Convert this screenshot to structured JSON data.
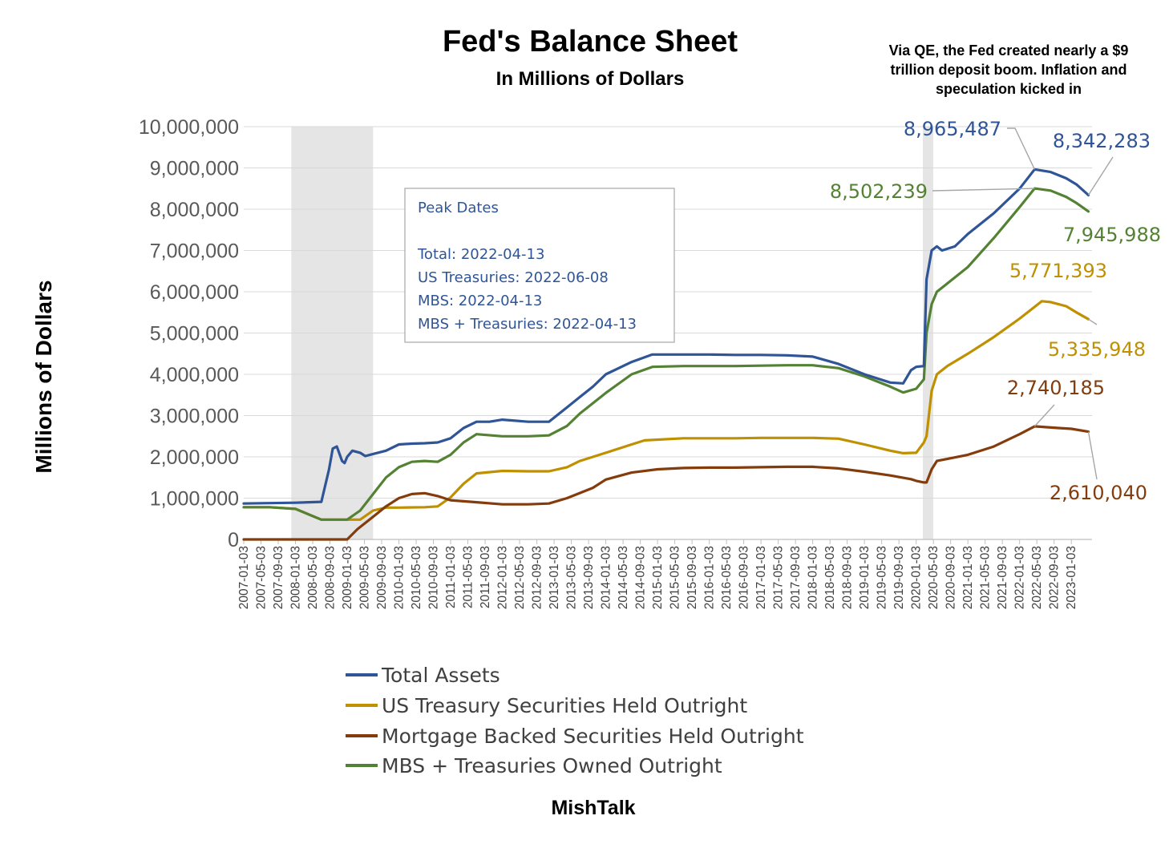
{
  "chart_data": {
    "type": "line",
    "title": "Fed's Balance Sheet",
    "subtitle": "In Millions of Dollars",
    "annotation_lines": [
      "Via QE, the Fed created nearly a $9",
      "trillion deposit boom. Inflation and",
      "speculation kicked in"
    ],
    "ylabel": "Millions of Dollars",
    "ylim": [
      0,
      10000000
    ],
    "yticks": [
      0,
      1000000,
      2000000,
      3000000,
      4000000,
      5000000,
      6000000,
      7000000,
      8000000,
      9000000,
      10000000
    ],
    "ytick_labels": [
      "0",
      "1,000,000",
      "2,000,000",
      "3,000,000",
      "4,000,000",
      "5,000,000",
      "6,000,000",
      "7,000,000",
      "8,000,000",
      "9,000,000",
      "10,000,000"
    ],
    "xlim": [
      2007.0,
      2023.4
    ],
    "xtick_labels": [
      "2007-01-03",
      "2007-05-03",
      "2007-09-03",
      "2008-01-03",
      "2008-05-03",
      "2008-09-03",
      "2009-01-03",
      "2009-05-03",
      "2009-09-03",
      "2010-01-03",
      "2010-05-03",
      "2010-09-03",
      "2011-01-03",
      "2011-05-03",
      "2011-09-03",
      "2012-01-03",
      "2012-05-03",
      "2012-09-03",
      "2013-01-03",
      "2013-05-03",
      "2013-09-03",
      "2014-01-03",
      "2014-05-03",
      "2014-09-03",
      "2015-01-03",
      "2015-05-03",
      "2015-09-03",
      "2016-01-03",
      "2016-05-03",
      "2016-09-03",
      "2017-01-03",
      "2017-05-03",
      "2017-09-03",
      "2018-01-03",
      "2018-05-03",
      "2018-09-03",
      "2019-01-03",
      "2019-05-03",
      "2019-09-03",
      "2020-01-03",
      "2020-05-03",
      "2020-09-03",
      "2021-01-03",
      "2021-05-03",
      "2021-09-03",
      "2022-01-03",
      "2022-05-03",
      "2022-09-03",
      "2023-01-03"
    ],
    "recession_bands": [
      [
        2007.92,
        2009.5
      ],
      [
        2020.13,
        2020.33
      ]
    ],
    "series": [
      {
        "name": "Total Assets",
        "color": "#2F5597",
        "x": [
          2007.0,
          2007.5,
          2008.0,
          2008.5,
          2008.65,
          2008.72,
          2008.8,
          2008.9,
          2008.95,
          2009.0,
          2009.1,
          2009.25,
          2009.35,
          2009.5,
          2009.75,
          2010.0,
          2010.25,
          2010.5,
          2010.75,
          2011.0,
          2011.25,
          2011.5,
          2011.75,
          2012.0,
          2012.5,
          2012.9,
          2013.25,
          2013.5,
          2013.75,
          2014.0,
          2014.5,
          2014.9,
          2015.5,
          2016.0,
          2016.5,
          2017.0,
          2017.5,
          2018.0,
          2018.5,
          2019.0,
          2019.5,
          2019.75,
          2019.9,
          2020.0,
          2020.15,
          2020.2,
          2020.3,
          2020.4,
          2020.5,
          2020.75,
          2021.0,
          2021.5,
          2022.0,
          2022.29,
          2022.6,
          2022.9,
          2023.1,
          2023.33
        ],
        "values": [
          870000,
          880000,
          890000,
          910000,
          1700000,
          2200000,
          2250000,
          1900000,
          1850000,
          2000000,
          2150000,
          2100000,
          2020000,
          2070000,
          2150000,
          2300000,
          2320000,
          2330000,
          2350000,
          2450000,
          2700000,
          2850000,
          2850000,
          2900000,
          2850000,
          2850000,
          3200000,
          3450000,
          3700000,
          4000000,
          4300000,
          4480000,
          4480000,
          4480000,
          4470000,
          4470000,
          4460000,
          4430000,
          4250000,
          4000000,
          3800000,
          3780000,
          4100000,
          4180000,
          4200000,
          6300000,
          7000000,
          7100000,
          7000000,
          7100000,
          7400000,
          7900000,
          8500000,
          8965487,
          8900000,
          8750000,
          8600000,
          8342283
        ]
      },
      {
        "name": "US Treasury Securities Held Outright",
        "color": "#BF9000",
        "x": [
          2007.0,
          2007.5,
          2008.0,
          2008.5,
          2008.75,
          2009.0,
          2009.25,
          2009.5,
          2009.75,
          2010.0,
          2010.5,
          2010.75,
          2011.0,
          2011.25,
          2011.5,
          2012.0,
          2012.5,
          2012.9,
          2013.25,
          2013.5,
          2014.0,
          2014.5,
          2014.75,
          2015.5,
          2016.0,
          2016.5,
          2017.0,
          2017.5,
          2018.0,
          2018.5,
          2019.0,
          2019.5,
          2019.75,
          2020.0,
          2020.15,
          2020.2,
          2020.3,
          2020.4,
          2020.6,
          2021.0,
          2021.5,
          2022.0,
          2022.43,
          2022.6,
          2022.9,
          2023.1,
          2023.33
        ],
        "values": [
          780000,
          780000,
          740000,
          480000,
          480000,
          480000,
          480000,
          700000,
          770000,
          770000,
          780000,
          800000,
          1020000,
          1350000,
          1600000,
          1660000,
          1650000,
          1650000,
          1750000,
          1900000,
          2100000,
          2300000,
          2400000,
          2450000,
          2450000,
          2450000,
          2460000,
          2460000,
          2460000,
          2440000,
          2300000,
          2150000,
          2090000,
          2100000,
          2350000,
          2500000,
          3600000,
          4000000,
          4200000,
          4500000,
          4900000,
          5350000,
          5771393,
          5750000,
          5650000,
          5500000,
          5335948
        ]
      },
      {
        "name": "Mortgage Backed Securities Held Outright",
        "color": "#843C0C",
        "x": [
          2007.0,
          2008.0,
          2009.0,
          2009.2,
          2009.5,
          2009.75,
          2010.0,
          2010.25,
          2010.5,
          2010.75,
          2011.0,
          2011.5,
          2012.0,
          2012.5,
          2012.9,
          2013.25,
          2013.75,
          2014.0,
          2014.5,
          2015.0,
          2015.5,
          2016.0,
          2016.5,
          2017.0,
          2017.5,
          2018.0,
          2018.5,
          2019.0,
          2019.5,
          2019.9,
          2020.0,
          2020.15,
          2020.2,
          2020.3,
          2020.4,
          2020.6,
          2021.0,
          2021.5,
          2022.0,
          2022.29,
          2022.5,
          2022.75,
          2023.0,
          2023.33
        ],
        "values": [
          0,
          0,
          0,
          250000,
          550000,
          800000,
          1000000,
          1100000,
          1120000,
          1050000,
          950000,
          900000,
          850000,
          850000,
          870000,
          1000000,
          1250000,
          1450000,
          1620000,
          1700000,
          1730000,
          1740000,
          1740000,
          1750000,
          1760000,
          1760000,
          1720000,
          1640000,
          1550000,
          1460000,
          1420000,
          1380000,
          1380000,
          1700000,
          1900000,
          1950000,
          2050000,
          2250000,
          2550000,
          2740185,
          2720000,
          2700000,
          2680000,
          2610040
        ]
      },
      {
        "name": "MBS + Treasuries Owned Outright",
        "color": "#548235",
        "x": [
          2007.0,
          2007.5,
          2008.0,
          2008.5,
          2008.75,
          2009.0,
          2009.25,
          2009.5,
          2009.75,
          2010.0,
          2010.25,
          2010.5,
          2010.75,
          2011.0,
          2011.25,
          2011.5,
          2012.0,
          2012.5,
          2012.9,
          2013.25,
          2013.5,
          2014.0,
          2014.5,
          2014.9,
          2015.5,
          2016.0,
          2016.5,
          2017.0,
          2017.5,
          2018.0,
          2018.5,
          2019.0,
          2019.5,
          2019.75,
          2020.0,
          2020.15,
          2020.2,
          2020.3,
          2020.4,
          2020.6,
          2021.0,
          2021.5,
          2022.0,
          2022.29,
          2022.6,
          2022.9,
          2023.1,
          2023.33
        ],
        "values": [
          780000,
          780000,
          740000,
          480000,
          480000,
          480000,
          700000,
          1100000,
          1500000,
          1750000,
          1880000,
          1900000,
          1880000,
          2050000,
          2350000,
          2550000,
          2500000,
          2500000,
          2520000,
          2750000,
          3050000,
          3550000,
          4000000,
          4180000,
          4200000,
          4200000,
          4200000,
          4210000,
          4220000,
          4220000,
          4150000,
          3950000,
          3700000,
          3560000,
          3650000,
          3880000,
          5000000,
          5700000,
          6000000,
          6200000,
          6600000,
          7300000,
          8050000,
          8502239,
          8450000,
          8300000,
          8150000,
          7945988
        ]
      }
    ],
    "data_labels": [
      {
        "text": "8,965,487",
        "series": 0,
        "x": 2022.29,
        "y": 8965487
      },
      {
        "text": "8,342,283",
        "series": 0,
        "x": 2023.33,
        "y": 8342283
      },
      {
        "text": "8,502,239",
        "series": 3,
        "x": 2022.29,
        "y": 8502239
      },
      {
        "text": "7,945,988",
        "series": 3,
        "x": 2023.33,
        "y": 7945988
      },
      {
        "text": "5,771,393",
        "series": 1,
        "x": 2022.43,
        "y": 5771393
      },
      {
        "text": "5,335,948",
        "series": 1,
        "x": 2023.33,
        "y": 5335948
      },
      {
        "text": "2,740,185",
        "series": 2,
        "x": 2022.29,
        "y": 2740185
      },
      {
        "text": "2,610,040",
        "series": 2,
        "x": 2023.33,
        "y": 2610040
      }
    ],
    "peak_box": {
      "title": "Peak Dates",
      "lines": [
        "Total: 2022-04-13",
        "US Treasuries: 2022-06-08",
        "MBS: 2022-04-13",
        "MBS + Treasuries: 2022-04-13"
      ]
    },
    "legend": [
      "Total Assets",
      "US Treasury Securities Held Outright",
      "Mortgage Backed Securities Held Outright",
      "MBS + Treasuries Owned Outright"
    ],
    "legend_position": "bottom",
    "grid": true,
    "source": "MishTalk"
  },
  "colors": {
    "title": "#2F5597",
    "note": "#4472C4",
    "source": "#4F6FA8",
    "grid": "#D9D9D9",
    "band": "#E5E5E5"
  }
}
